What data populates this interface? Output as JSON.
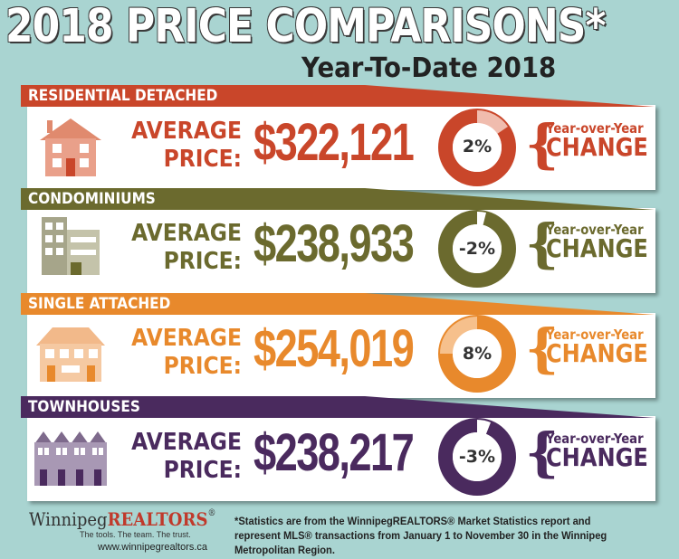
{
  "header": {
    "title": "2018 PRICE COMPARISONS*",
    "subtitle": "Year-To-Date 2018"
  },
  "colors": {
    "background": "#a9d4d1",
    "residential": "#c9462a",
    "condominiums": "#6b6a2e",
    "single_attached": "#e8892c",
    "townhouses": "#4a2a5e"
  },
  "sections": [
    {
      "category": "RESIDENTIAL DETACHED",
      "icon": "house-icon",
      "avg_line1": "AVERAGE",
      "avg_line2": "PRICE:",
      "price": "$322,121",
      "change": "2%",
      "change_value": 2,
      "yoy_label": "Year-over-Year",
      "change_label": "CHANGE"
    },
    {
      "category": "CONDOMINIUMS",
      "icon": "condo-building-icon",
      "avg_line1": "AVERAGE",
      "avg_line2": "PRICE:",
      "price": "$238,933",
      "change": "-2%",
      "change_value": -2,
      "yoy_label": "Year-over-Year",
      "change_label": "CHANGE"
    },
    {
      "category": "SINGLE ATTACHED",
      "icon": "duplex-house-icon",
      "avg_line1": "AVERAGE",
      "avg_line2": "PRICE:",
      "price": "$254,019",
      "change": "8%",
      "change_value": 8,
      "yoy_label": "Year-over-Year",
      "change_label": "CHANGE"
    },
    {
      "category": "TOWNHOUSES",
      "icon": "townhouse-row-icon",
      "avg_line1": "AVERAGE",
      "avg_line2": "PRICE:",
      "price": "$238,217",
      "change": "-3%",
      "change_value": -3,
      "yoy_label": "Year-over-Year",
      "change_label": "CHANGE"
    }
  ],
  "footer": {
    "logo_part1": "Winnipeg",
    "logo_part2": "REALTORS",
    "logo_mark": "®",
    "tagline": "The tools. The team. The trust.",
    "url": "www.winnipegrealtors.ca",
    "note": "*Statistics are from the WinnipegREALTORS® Market Statistics report and represent MLS® transactions from January 1 to November 30 in the Winnipeg Metropolitan Region."
  }
}
